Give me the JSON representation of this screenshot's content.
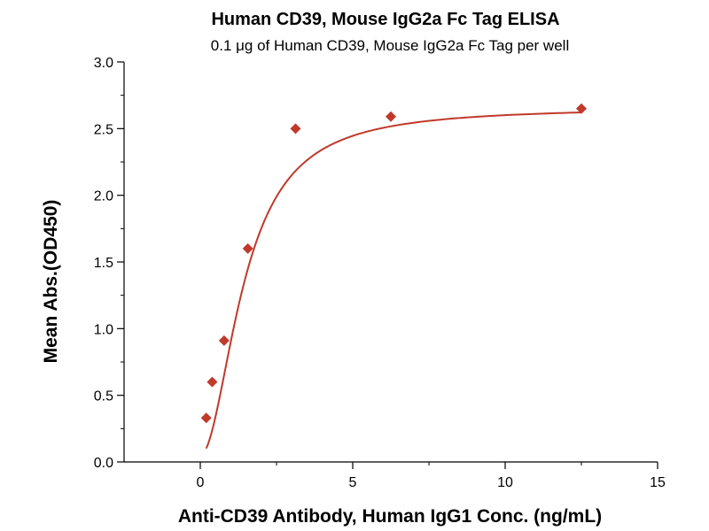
{
  "chart_data": {
    "type": "scatter",
    "title": "Human CD39, Mouse IgG2a Fc Tag ELISA",
    "subtitle": "0.1 μg of Human CD39, Mouse IgG2a Fc Tag per well",
    "xlabel": "Anti-CD39 Antibody, Human IgG1 Conc. (ng/mL)",
    "ylabel": "Mean Abs.(OD450)",
    "xlim": [
      -2.5,
      15
    ],
    "ylim": [
      0,
      3.0
    ],
    "x_ticks": [
      0,
      5,
      10,
      15
    ],
    "y_ticks": [
      0.0,
      0.5,
      1.0,
      1.5,
      2.0,
      2.5,
      3.0
    ],
    "x_tick_labels": [
      "0",
      "5",
      "10",
      "15"
    ],
    "y_tick_labels": [
      "0.0",
      "0.5",
      "1.0",
      "1.5",
      "2.0",
      "2.5",
      "3.0"
    ],
    "grid": false,
    "series": [
      {
        "color": "#c0392b",
        "marker": "diamond",
        "fit_curve": "four-parameter logistic",
        "x": [
          0.195,
          0.39,
          0.78,
          1.56,
          3.125,
          6.25,
          12.5
        ],
        "y": [
          0.33,
          0.6,
          0.91,
          1.6,
          2.5,
          2.59,
          2.65
        ]
      }
    ]
  }
}
